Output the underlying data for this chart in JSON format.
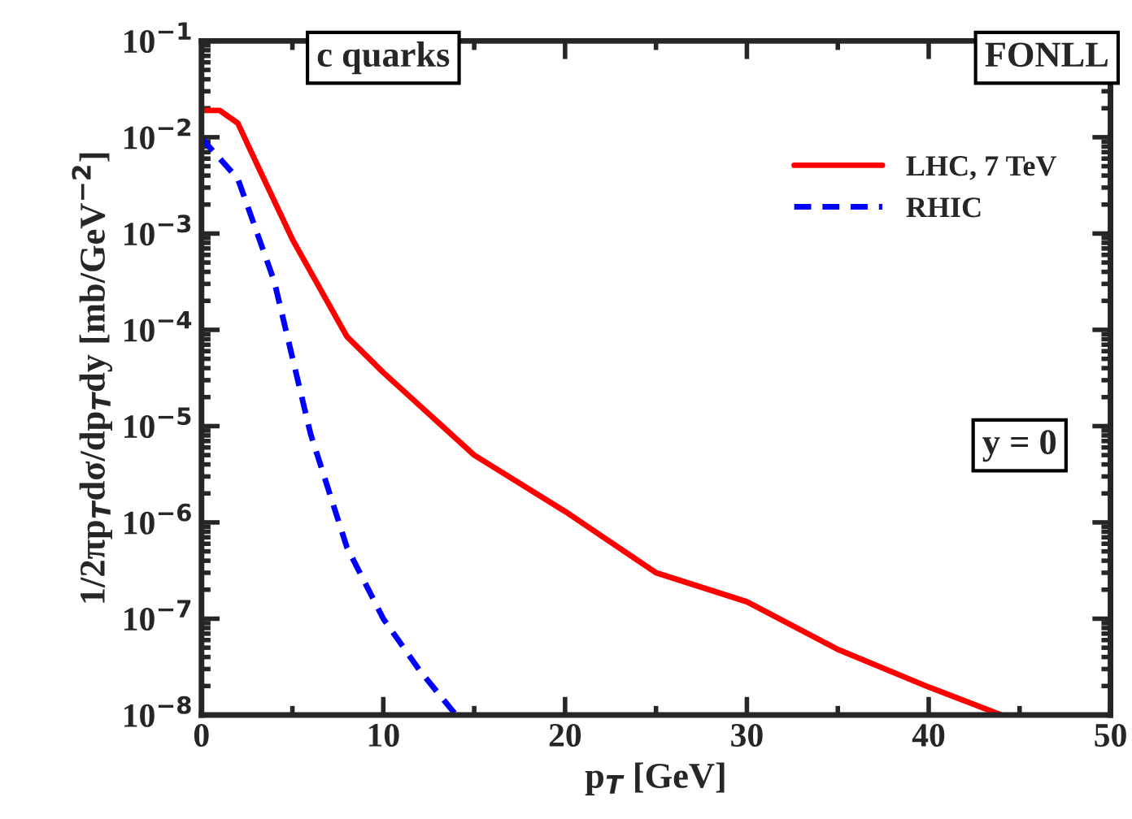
{
  "chart_data": {
    "type": "line",
    "xlabel": "p$_{T}$ [GeV]",
    "ylabel": "1/2πp$_{T}$dσ/dp$_{T}$dy [mb/GeV$^{−2}$]",
    "xlim": [
      0,
      50
    ],
    "xticks": [
      0,
      10,
      20,
      30,
      40,
      50
    ],
    "ylim": [
      1e-08,
      0.1
    ],
    "log": "y",
    "yticks": [
      {
        "value": 1e-08,
        "label": "10$^{−8}$"
      },
      {
        "value": 1e-07,
        "label": "10$^{−7}$"
      },
      {
        "value": 1e-06,
        "label": "10$^{−6}$"
      },
      {
        "value": 1e-05,
        "label": "10$^{−5}$"
      },
      {
        "value": 0.0001,
        "label": "10$^{−4}$"
      },
      {
        "value": 0.001,
        "label": "10$^{−3}$"
      },
      {
        "value": 0.01,
        "label": "10$^{−2}$"
      },
      {
        "value": 0.1,
        "label": "10$^{−1}$"
      }
    ],
    "grid": false,
    "legend": "top right",
    "annotations": [
      "c quarks",
      "FONLL",
      "y = 0"
    ],
    "series": [
      {
        "name": "LHC, 7 TeV",
        "color": "#ff0000",
        "line_style": "solid",
        "x": [
          0,
          1,
          2,
          3,
          5,
          8,
          10,
          15,
          20,
          25,
          30,
          35,
          40,
          44
        ],
        "values": [
          0.019,
          0.019,
          0.014,
          0.0055,
          0.00087,
          8.5e-05,
          3.6e-05,
          5e-06,
          1.3e-06,
          3e-07,
          1.5e-07,
          4.8e-08,
          1.95e-08,
          1e-08
        ]
      },
      {
        "name": "RHIC",
        "color": "#0000ff",
        "line_style": "dashed",
        "x": [
          0,
          2,
          4,
          6,
          8,
          10,
          12,
          14
        ],
        "values": [
          0.0098,
          0.0037,
          0.00032,
          8.3e-06,
          5.5e-07,
          1e-07,
          2.9e-08,
          1e-08
        ]
      }
    ]
  }
}
